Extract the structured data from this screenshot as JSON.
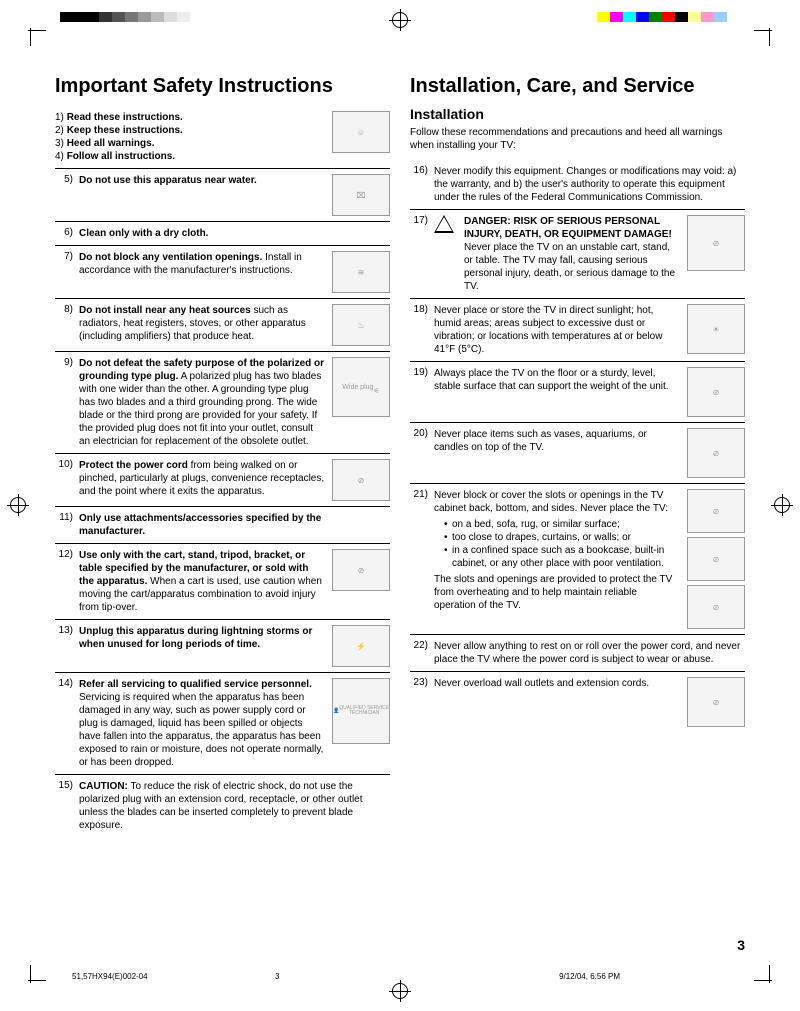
{
  "colorbar_left": [
    "#000000",
    "#000000",
    "#000000",
    "#333333",
    "#555555",
    "#777777",
    "#999999",
    "#bbbbbb",
    "#dddddd",
    "#eeeeee",
    "#ffffff"
  ],
  "colorbar_right": [
    "#ffff00",
    "#ff00ff",
    "#00ffff",
    "#0000ff",
    "#008000",
    "#ff0000",
    "#000000",
    "#ffff99",
    "#ff99cc",
    "#99ccff",
    "#ffffff"
  ],
  "left": {
    "title": "Important Safety Instructions",
    "items": {
      "1": "Read these instructions.",
      "2": "Keep these instructions.",
      "3": "Heed all warnings.",
      "4": "Follow all instructions.",
      "5": "Do not use this apparatus near water.",
      "6": "Clean only with a dry cloth.",
      "7b": "Do not block any ventilation openings.",
      "7r": " Install in accordance with the manufacturer's instructions.",
      "8b": "Do not install near any heat sources",
      "8r": " such as radiators, heat registers, stoves, or other apparatus (including amplifiers) that produce heat.",
      "9b": "Do not defeat the safety purpose of the polarized or grounding type plug.",
      "9r": " A polarized plug has two blades with one wider than the other. A grounding type plug has two blades and a third grounding prong. The wide blade or the third prong are provided for your safety. If the provided plug does not fit into your outlet, consult an electrician for replacement of the obsolete outlet.",
      "9label": "Wide plug",
      "10b": "Protect the power cord",
      "10r": " from being walked on or pinched, particularly at plugs, convenience receptacles, and the point where it exits the apparatus.",
      "11": "Only use attachments/accessories specified by the manufacturer.",
      "12b": "Use only with the cart, stand, tripod, bracket, or table specified by the manufacturer, or sold with the apparatus.",
      "12r": " When a cart is used, use caution when moving the cart/apparatus combination to avoid injury from tip-over.",
      "13": "Unplug this apparatus during lightning storms or when unused for long periods of time.",
      "14b": "Refer all servicing to qualified service personnel.",
      "14r": " Servicing is required when the apparatus has been damaged in any way, such as power supply cord or plug is damaged, liquid has been spilled or objects have fallen into the apparatus, the apparatus has been exposed to rain or moisture, does not operate normally, or has been dropped.",
      "14label": "QUALIFIED SERVICE TECHNICIAN",
      "15b": "CAUTION:",
      "15r": " To reduce the risk of electric shock, do not use the polarized plug with an extension cord, receptacle, or other outlet unless the blades can be inserted completely to prevent blade exposure."
    }
  },
  "right": {
    "title": "Installation, Care, and Service",
    "subtitle": "Installation",
    "intro": "Follow these recommendations and precautions and heed all warnings when installing your TV:",
    "items": {
      "16": "Never modify this equipment. Changes or modifications may void: a) the warranty, and b) the user's authority to operate this equipment under the rules of the Federal Communications Commission.",
      "17b": "DANGER: RISK OF SERIOUS PERSONAL INJURY, DEATH, OR EQUIPMENT DAMAGE!",
      "17r": " Never place the TV on an unstable cart, stand, or table. The TV may fall, causing serious personal injury, death, or serious damage to the TV.",
      "18": "Never place or store the TV in direct sunlight; hot, humid areas; areas subject to excessive dust or vibration; or locations with temperatures at or below 41°F (5°C).",
      "19": "Always place the TV on the floor or a sturdy, level, stable surface that can support the weight of the unit.",
      "20": "Never place items such as vases, aquariums, or candles on top of the TV.",
      "21a": "Never block or cover the slots or openings in the TV cabinet back, bottom, and sides. Never place the TV:",
      "21b1": "on a bed, sofa, rug, or similar surface;",
      "21b2": "too close to drapes, curtains, or walls; or",
      "21b3": "in a confined space such as a bookcase, built-in cabinet, or any other place with poor ventilation.",
      "21c": "The slots and openings are provided to protect the TV from overheating and to help maintain reliable operation of the TV.",
      "22": "Never allow anything to rest on or roll over the power cord, and never place the TV where the power cord is subject to wear or abuse.",
      "23": "Never overload wall outlets and extension cords."
    }
  },
  "page_num": "3",
  "footer": {
    "file": "51,57HX94(E)002-04",
    "page": "3",
    "date": "9/12/04, 6:56 PM"
  }
}
